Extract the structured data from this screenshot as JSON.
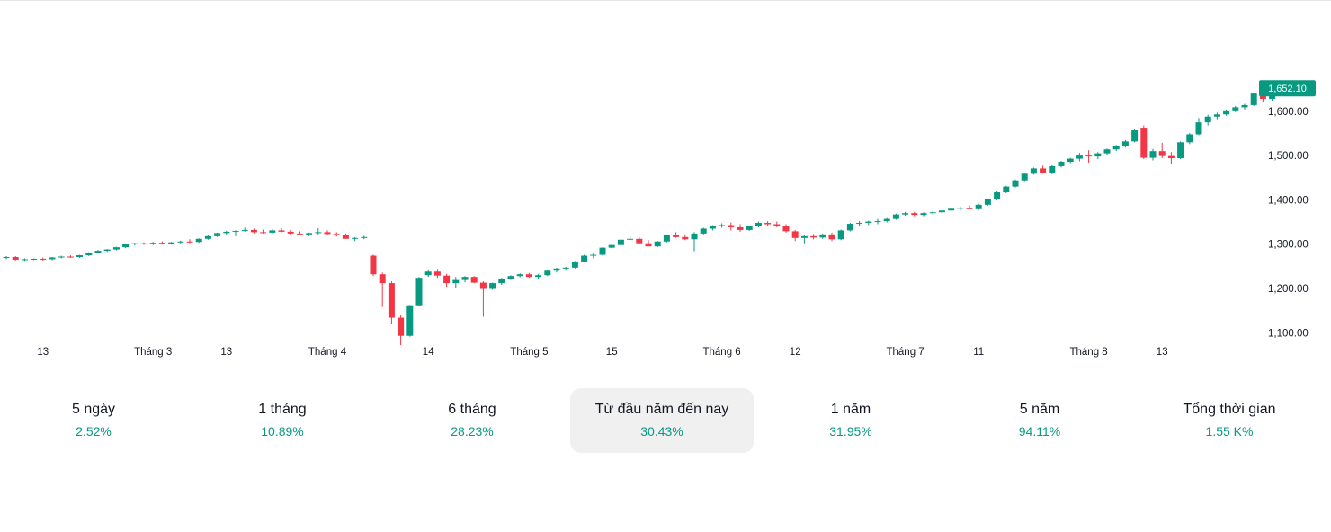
{
  "chart_data": {
    "type": "candlestick",
    "ylim": [
      1060,
      1695
    ],
    "y_ticks": [
      "1,100.00",
      "1,200.00",
      "1,300.00",
      "1,400.00",
      "1,500.00",
      "1,600.00"
    ],
    "y_tick_values": [
      1100,
      1200,
      1300,
      1400,
      1500,
      1600
    ],
    "x_labels": [
      "13",
      "Tháng 3",
      "13",
      "Tháng 4",
      "14",
      "Tháng 5",
      "15",
      "Tháng 6",
      "12",
      "Tháng 7",
      "11",
      "Tháng 8",
      "13"
    ],
    "x_label_index": [
      4,
      16,
      24,
      35,
      46,
      57,
      66,
      78,
      86,
      98,
      106,
      118,
      126
    ],
    "last_price": "1,652.10",
    "up_color": "#089981",
    "down_color": "#f23645",
    "candles": [
      [
        1270,
        1273,
        1266,
        1271
      ],
      [
        1271,
        1273,
        1263,
        1265
      ],
      [
        1265,
        1268,
        1262,
        1266
      ],
      [
        1266,
        1268,
        1264,
        1267
      ],
      [
        1267,
        1270,
        1263,
        1266
      ],
      [
        1266,
        1271,
        1264,
        1270
      ],
      [
        1270,
        1274,
        1268,
        1272
      ],
      [
        1272,
        1275,
        1269,
        1271
      ],
      [
        1271,
        1276,
        1269,
        1275
      ],
      [
        1275,
        1282,
        1273,
        1281
      ],
      [
        1281,
        1287,
        1279,
        1285
      ],
      [
        1285,
        1289,
        1282,
        1288
      ],
      [
        1288,
        1294,
        1286,
        1293
      ],
      [
        1293,
        1301,
        1291,
        1300
      ],
      [
        1300,
        1303,
        1297,
        1302
      ],
      [
        1302,
        1304,
        1298,
        1300
      ],
      [
        1300,
        1305,
        1298,
        1303
      ],
      [
        1303,
        1306,
        1299,
        1301
      ],
      [
        1301,
        1305,
        1299,
        1304
      ],
      [
        1304,
        1308,
        1301,
        1306
      ],
      [
        1306,
        1311,
        1302,
        1305
      ],
      [
        1305,
        1313,
        1303,
        1312
      ],
      [
        1312,
        1320,
        1310,
        1318
      ],
      [
        1318,
        1326,
        1316,
        1325
      ],
      [
        1325,
        1330,
        1322,
        1328
      ],
      [
        1328,
        1331,
        1318,
        1330
      ],
      [
        1330,
        1337,
        1328,
        1332
      ],
      [
        1332,
        1335,
        1324,
        1327
      ],
      [
        1327,
        1333,
        1324,
        1326
      ],
      [
        1326,
        1334,
        1323,
        1331
      ],
      [
        1331,
        1336,
        1327,
        1328
      ],
      [
        1328,
        1332,
        1322,
        1324
      ],
      [
        1324,
        1329,
        1321,
        1322
      ],
      [
        1322,
        1326,
        1318,
        1325
      ],
      [
        1325,
        1336,
        1322,
        1327
      ],
      [
        1327,
        1331,
        1322,
        1323
      ],
      [
        1323,
        1327,
        1317,
        1320
      ],
      [
        1320,
        1324,
        1313,
        1312
      ],
      [
        1312,
        1316,
        1307,
        1314
      ],
      [
        1314,
        1319,
        1311,
        1316
      ],
      [
        1274,
        1276,
        1228,
        1232
      ],
      [
        1232,
        1236,
        1158,
        1212
      ],
      [
        1212,
        1216,
        1120,
        1134
      ],
      [
        1134,
        1140,
        1072,
        1093
      ],
      [
        1093,
        1163,
        1091,
        1162
      ],
      [
        1162,
        1226,
        1160,
        1224
      ],
      [
        1230,
        1243,
        1226,
        1238
      ],
      [
        1238,
        1244,
        1224,
        1229
      ],
      [
        1229,
        1233,
        1204,
        1212
      ],
      [
        1212,
        1226,
        1202,
        1219
      ],
      [
        1219,
        1228,
        1214,
        1226
      ],
      [
        1226,
        1228,
        1212,
        1213
      ],
      [
        1213,
        1216,
        1136,
        1199
      ],
      [
        1199,
        1213,
        1197,
        1212
      ],
      [
        1212,
        1224,
        1208,
        1222
      ],
      [
        1222,
        1230,
        1219,
        1228
      ],
      [
        1228,
        1234,
        1225,
        1232
      ],
      [
        1232,
        1235,
        1224,
        1226
      ],
      [
        1226,
        1233,
        1221,
        1230
      ],
      [
        1230,
        1241,
        1228,
        1240
      ],
      [
        1240,
        1247,
        1236,
        1245
      ],
      [
        1245,
        1249,
        1240,
        1247
      ],
      [
        1247,
        1262,
        1245,
        1261
      ],
      [
        1261,
        1276,
        1259,
        1274
      ],
      [
        1274,
        1279,
        1268,
        1276
      ],
      [
        1276,
        1293,
        1274,
        1292
      ],
      [
        1292,
        1300,
        1290,
        1298
      ],
      [
        1298,
        1312,
        1296,
        1310
      ],
      [
        1310,
        1317,
        1306,
        1312
      ],
      [
        1312,
        1316,
        1301,
        1302
      ],
      [
        1302,
        1309,
        1296,
        1295
      ],
      [
        1295,
        1307,
        1293,
        1306
      ],
      [
        1306,
        1322,
        1304,
        1320
      ],
      [
        1320,
        1327,
        1314,
        1316
      ],
      [
        1316,
        1322,
        1309,
        1311
      ],
      [
        1311,
        1327,
        1284,
        1324
      ],
      [
        1324,
        1337,
        1322,
        1335
      ],
      [
        1335,
        1343,
        1331,
        1341
      ],
      [
        1341,
        1347,
        1337,
        1343
      ],
      [
        1343,
        1349,
        1331,
        1338
      ],
      [
        1338,
        1345,
        1328,
        1332
      ],
      [
        1332,
        1342,
        1330,
        1340
      ],
      [
        1340,
        1351,
        1338,
        1348
      ],
      [
        1348,
        1352,
        1341,
        1345
      ],
      [
        1345,
        1351,
        1338,
        1340
      ],
      [
        1340,
        1345,
        1326,
        1329
      ],
      [
        1329,
        1332,
        1307,
        1314
      ],
      [
        1314,
        1321,
        1302,
        1318
      ],
      [
        1318,
        1323,
        1311,
        1315
      ],
      [
        1315,
        1324,
        1312,
        1322
      ],
      [
        1322,
        1326,
        1307,
        1311
      ],
      [
        1311,
        1333,
        1309,
        1331
      ],
      [
        1331,
        1348,
        1329,
        1346
      ],
      [
        1346,
        1352,
        1341,
        1348
      ],
      [
        1348,
        1353,
        1343,
        1351
      ],
      [
        1351,
        1357,
        1345,
        1352
      ],
      [
        1352,
        1359,
        1349,
        1357
      ],
      [
        1357,
        1369,
        1355,
        1367
      ],
      [
        1367,
        1373,
        1364,
        1370
      ],
      [
        1370,
        1373,
        1363,
        1366
      ],
      [
        1366,
        1372,
        1363,
        1370
      ],
      [
        1370,
        1375,
        1367,
        1372
      ],
      [
        1372,
        1378,
        1368,
        1376
      ],
      [
        1376,
        1382,
        1373,
        1380
      ],
      [
        1380,
        1385,
        1376,
        1382
      ],
      [
        1382,
        1388,
        1378,
        1379
      ],
      [
        1379,
        1391,
        1377,
        1389
      ],
      [
        1389,
        1403,
        1387,
        1401
      ],
      [
        1401,
        1419,
        1399,
        1417
      ],
      [
        1417,
        1432,
        1415,
        1430
      ],
      [
        1430,
        1446,
        1428,
        1444
      ],
      [
        1444,
        1461,
        1442,
        1459
      ],
      [
        1459,
        1473,
        1457,
        1471
      ],
      [
        1471,
        1477,
        1459,
        1460
      ],
      [
        1460,
        1478,
        1458,
        1476
      ],
      [
        1476,
        1488,
        1473,
        1486
      ],
      [
        1486,
        1495,
        1483,
        1493
      ],
      [
        1493,
        1506,
        1487,
        1500
      ],
      [
        1500,
        1512,
        1484,
        1498
      ],
      [
        1498,
        1508,
        1492,
        1505
      ],
      [
        1505,
        1516,
        1502,
        1514
      ],
      [
        1514,
        1524,
        1510,
        1521
      ],
      [
        1521,
        1535,
        1518,
        1532
      ],
      [
        1532,
        1559,
        1530,
        1557
      ],
      [
        1563,
        1568,
        1492,
        1495
      ],
      [
        1495,
        1515,
        1489,
        1510
      ],
      [
        1510,
        1529,
        1494,
        1499
      ],
      [
        1499,
        1508,
        1482,
        1494
      ],
      [
        1494,
        1532,
        1492,
        1530
      ],
      [
        1530,
        1551,
        1526,
        1548
      ],
      [
        1548,
        1585,
        1546,
        1575
      ],
      [
        1575,
        1592,
        1568,
        1588
      ],
      [
        1588,
        1597,
        1582,
        1593
      ],
      [
        1593,
        1604,
        1590,
        1602
      ],
      [
        1602,
        1612,
        1598,
        1609
      ],
      [
        1609,
        1617,
        1604,
        1614
      ],
      [
        1614,
        1642,
        1612,
        1640
      ],
      [
        1640,
        1664,
        1621,
        1628
      ],
      [
        1628,
        1642,
        1624,
        1637
      ],
      [
        1637,
        1654,
        1634,
        1652
      ]
    ]
  },
  "periods": [
    {
      "label": "5 ngày",
      "value": "2.52%"
    },
    {
      "label": "1 tháng",
      "value": "10.89%"
    },
    {
      "label": "6 tháng",
      "value": "28.23%"
    },
    {
      "label": "Từ đầu năm đến nay",
      "value": "30.43%",
      "active": true
    },
    {
      "label": "1 năm",
      "value": "31.95%"
    },
    {
      "label": "5 năm",
      "value": "94.11%"
    },
    {
      "label": "Tổng thời gian",
      "value": "1.55 K%"
    }
  ]
}
